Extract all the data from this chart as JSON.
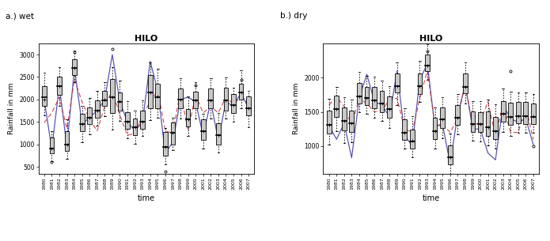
{
  "years": [
    1980,
    1981,
    1982,
    1983,
    1984,
    1985,
    1986,
    1987,
    1988,
    1989,
    1990,
    1991,
    1992,
    1993,
    1994,
    1995,
    1996,
    1997,
    1998,
    1999,
    2000,
    2001,
    2002,
    2003,
    2004,
    2005,
    2006,
    2007
  ],
  "wet_actual": [
    2000,
    900,
    2300,
    950,
    2700,
    1450,
    1600,
    1750,
    2000,
    3000,
    1950,
    1500,
    1300,
    1500,
    2850,
    2200,
    800,
    1050,
    2000,
    2050,
    1950,
    1200,
    1950,
    1100,
    1950,
    1850,
    2150,
    1800
  ],
  "wet_elison": [
    1480,
    1700,
    2050,
    1350,
    2450,
    1950,
    1550,
    1300,
    1850,
    2200,
    1650,
    1200,
    1250,
    1650,
    1950,
    2200,
    1300,
    1250,
    2200,
    1300,
    2100,
    1700,
    1850,
    1700,
    2050,
    1900,
    2050,
    1900
  ],
  "wet_q1": [
    1850,
    800,
    2100,
    850,
    2550,
    1300,
    1450,
    1600,
    1850,
    1700,
    1750,
    1350,
    1200,
    1350,
    1800,
    1800,
    750,
    1000,
    1800,
    1400,
    1800,
    1100,
    1800,
    1000,
    1750,
    1700,
    2000,
    1650
  ],
  "wet_median": [
    2050,
    900,
    2300,
    1000,
    2700,
    1450,
    1600,
    1750,
    1980,
    2050,
    1950,
    1500,
    1380,
    1500,
    2150,
    2050,
    950,
    1250,
    2000,
    1550,
    1980,
    1300,
    1980,
    1200,
    1980,
    1880,
    2150,
    1800
  ],
  "wet_q3": [
    2300,
    1150,
    2500,
    1300,
    2900,
    1680,
    1820,
    1980,
    2200,
    2450,
    2150,
    1720,
    1580,
    1750,
    2550,
    2350,
    1280,
    1480,
    2250,
    1780,
    2180,
    1560,
    2250,
    1470,
    2270,
    2130,
    2350,
    2070
  ],
  "wet_wl": [
    1650,
    620,
    1850,
    680,
    2380,
    1050,
    1230,
    1420,
    1620,
    1330,
    1530,
    1130,
    1020,
    1180,
    1540,
    1600,
    560,
    870,
    1570,
    1180,
    1570,
    910,
    1570,
    820,
    1570,
    1500,
    1810,
    1390
  ],
  "wet_wh": [
    2600,
    1300,
    2720,
    1550,
    3090,
    1850,
    2040,
    2190,
    2380,
    2720,
    2420,
    1960,
    1760,
    1980,
    2820,
    2680,
    1360,
    1590,
    2480,
    2070,
    2390,
    1680,
    2470,
    1690,
    2490,
    2270,
    2650,
    2190
  ],
  "wet_out_high": [
    [],
    [],
    [],
    [],
    [
      3050
    ],
    [],
    [],
    [],
    [],
    [
      3120
    ],
    [],
    [],
    [],
    [],
    [],
    [],
    [],
    [],
    [],
    [],
    [
      2310
    ],
    [],
    [],
    [],
    [],
    [],
    [
      2430
    ],
    []
  ],
  "wet_out_low": [
    [],
    [
      600
    ],
    [],
    [],
    [],
    [],
    [],
    [],
    [],
    [],
    [],
    [],
    [],
    [],
    [],
    [],
    [
      390
    ],
    [],
    [],
    [],
    [],
    [],
    [],
    [],
    [],
    [],
    [],
    []
  ],
  "wet_means": [
    2000,
    900,
    2300,
    1000,
    2700,
    1450,
    1600,
    1750,
    2000,
    2050,
    1960,
    1500,
    1380,
    1510,
    2150,
    2060,
    950,
    1250,
    2000,
    1560,
    1980,
    1300,
    1980,
    1200,
    1980,
    1880,
    2160,
    1800
  ],
  "dry_actual": [
    1300,
    1100,
    1330,
    830,
    1700,
    2050,
    1650,
    1600,
    1430,
    2100,
    1160,
    1000,
    1970,
    2200,
    1280,
    1320,
    750,
    1450,
    1900,
    1250,
    1250,
    900,
    800,
    1600,
    1400,
    1350,
    1400,
    1020
  ],
  "dry_elison": [
    1600,
    1720,
    1580,
    1300,
    1700,
    1620,
    1500,
    1520,
    1680,
    1700,
    1250,
    1200,
    1700,
    2100,
    1300,
    1320,
    1200,
    1400,
    1900,
    1300,
    1350,
    1650,
    1150,
    1600,
    1200,
    1200,
    1580,
    1100
  ],
  "dry_q1": [
    1180,
    1430,
    1230,
    1210,
    1620,
    1600,
    1550,
    1500,
    1410,
    1780,
    1090,
    960,
    1760,
    2100,
    1100,
    1260,
    730,
    1310,
    1770,
    1210,
    1210,
    1150,
    1100,
    1360,
    1310,
    1330,
    1320,
    1320
  ],
  "dry_median": [
    1310,
    1540,
    1370,
    1330,
    1730,
    1700,
    1670,
    1620,
    1540,
    1880,
    1200,
    1070,
    1880,
    2180,
    1220,
    1390,
    840,
    1420,
    1870,
    1320,
    1320,
    1280,
    1220,
    1470,
    1430,
    1440,
    1440,
    1430
  ],
  "dry_q3": [
    1520,
    1740,
    1570,
    1520,
    1920,
    1870,
    1860,
    1810,
    1730,
    2060,
    1390,
    1240,
    2060,
    2340,
    1410,
    1570,
    1010,
    1600,
    2060,
    1510,
    1500,
    1510,
    1430,
    1660,
    1630,
    1640,
    1640,
    1620
  ],
  "dry_wl": [
    1020,
    1220,
    1050,
    1060,
    1500,
    1470,
    1420,
    1370,
    1270,
    1600,
    960,
    840,
    1640,
    1970,
    960,
    1110,
    600,
    1170,
    1620,
    1080,
    1070,
    1010,
    960,
    1210,
    1150,
    1190,
    1190,
    1190
  ],
  "dry_wh": [
    1690,
    1870,
    1710,
    1680,
    2080,
    2030,
    2010,
    1960,
    1880,
    2220,
    1550,
    1440,
    2240,
    2490,
    1570,
    1720,
    1180,
    1760,
    2220,
    1660,
    1660,
    1680,
    1610,
    1840,
    1800,
    1780,
    1780,
    1760
  ],
  "dry_out_high": [
    [],
    [],
    [],
    [],
    [],
    [],
    [],
    [],
    [],
    [],
    [],
    [],
    [],
    [
      2380
    ],
    [],
    [],
    [],
    [],
    [],
    [],
    [],
    [],
    [],
    [],
    [
      2100
    ],
    [],
    [],
    []
  ],
  "dry_out_low": [
    [],
    [],
    [],
    [],
    [],
    [],
    [],
    [],
    [],
    [],
    [],
    [],
    [],
    [],
    [],
    [],
    [],
    [],
    [],
    [],
    [],
    [],
    [],
    [],
    [],
    [],
    [],
    [
      1000
    ]
  ],
  "dry_means": [
    1310,
    1540,
    1370,
    1330,
    1730,
    1700,
    1670,
    1620,
    1540,
    1880,
    1200,
    1080,
    1880,
    2180,
    1220,
    1390,
    840,
    1420,
    1870,
    1320,
    1320,
    1280,
    1220,
    1470,
    1430,
    1440,
    1440,
    1440
  ],
  "bg_color": "#ffffff",
  "actual_line_color": "#4444aa",
  "elison_line_color": "#cc3333",
  "wet_ylim": [
    350,
    3250
  ],
  "wet_yticks": [
    500,
    1000,
    1500,
    2000,
    2500,
    3000
  ],
  "dry_ylim": [
    600,
    2500
  ],
  "dry_yticks": [
    1000,
    1500,
    2000
  ],
  "xlabel": "time",
  "ylabel": "Rainfall in mm",
  "wet_title": "HILO",
  "dry_title": "HILO",
  "wet_label": "a.) wet",
  "dry_label": "b.) dry"
}
